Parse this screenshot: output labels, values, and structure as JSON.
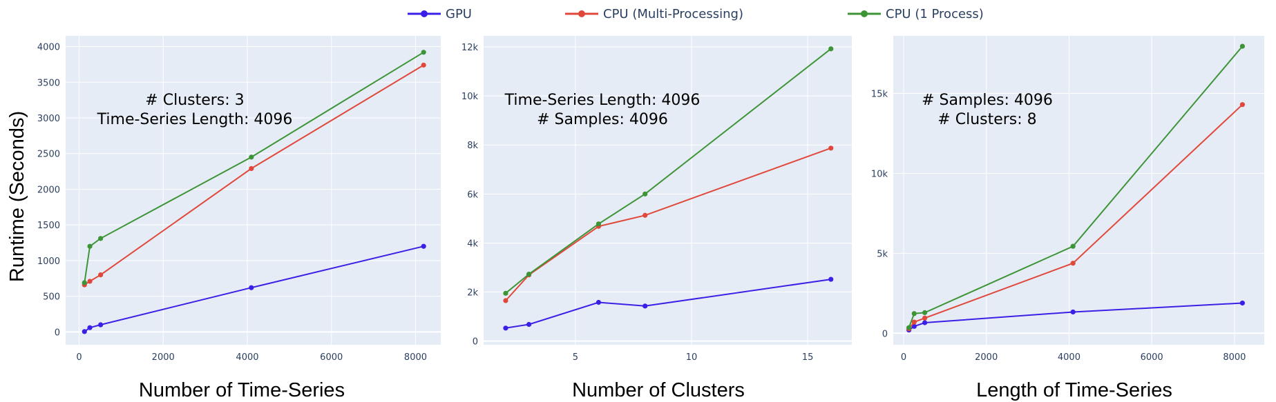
{
  "figure": {
    "ylabel": "Runtime (Seconds)"
  },
  "legend": {
    "items": [
      {
        "name": "GPU",
        "color": "#3a1fe6"
      },
      {
        "name": "CPU (Multi-Processing)",
        "color": "#e0483b"
      },
      {
        "name": "CPU (1 Process)",
        "color": "#3d9436"
      }
    ]
  },
  "chart_data": [
    {
      "type": "line",
      "xlabel": "Number of Time-Series",
      "ylabel": "Runtime (Seconds)",
      "annotation": [
        "# Clusters: 3",
        "Time-Series Length: 4096"
      ],
      "xlim": [
        -320,
        8600
      ],
      "ylim": [
        -180,
        4150
      ],
      "xticks": [
        0,
        2000,
        4000,
        6000,
        8000
      ],
      "xtick_labels": [
        "0",
        "2000",
        "4000",
        "6000",
        "8000"
      ],
      "yticks": [
        0,
        500,
        1000,
        1500,
        2000,
        2500,
        3000,
        3500,
        4000
      ],
      "ytick_labels": [
        "0",
        "500",
        "1000",
        "1500",
        "2000",
        "2500",
        "3000",
        "3500",
        "4000"
      ],
      "x": [
        128,
        256,
        512,
        4096,
        8192
      ],
      "series": [
        {
          "name": "GPU",
          "color": "#3a1fe6",
          "values": [
            5,
            60,
            100,
            620,
            1200
          ]
        },
        {
          "name": "CPU (Multi-Processing)",
          "color": "#e0483b",
          "values": [
            660,
            710,
            800,
            2290,
            3740
          ]
        },
        {
          "name": "CPU (1 Process)",
          "color": "#3d9436",
          "x": [
            128,
            256,
            512,
            4096,
            8192
          ],
          "values": [
            690,
            1200,
            1310,
            2450,
            3920
          ]
        }
      ]
    },
    {
      "type": "line",
      "xlabel": "Number of Clusters",
      "ylabel": "",
      "annotation": [
        "Time-Series Length: 4096",
        "# Samples: 4096"
      ],
      "xlim": [
        1.05,
        16.9
      ],
      "ylim": [
        -150,
        12450
      ],
      "xticks": [
        5,
        10,
        15
      ],
      "xtick_labels": [
        "5",
        "10",
        "15"
      ],
      "yticks": [
        0,
        2000,
        4000,
        6000,
        8000,
        10000,
        12000
      ],
      "ytick_labels": [
        "0",
        "2k",
        "4k",
        "6k",
        "8k",
        "10k",
        "12k"
      ],
      "x": [
        2,
        3,
        6,
        8,
        16
      ],
      "series": [
        {
          "name": "GPU",
          "color": "#3a1fe6",
          "values": [
            530,
            680,
            1580,
            1430,
            2520
          ]
        },
        {
          "name": "CPU (Multi-Processing)",
          "color": "#e0483b",
          "values": [
            1650,
            2700,
            4680,
            5130,
            7870
          ]
        },
        {
          "name": "CPU (1 Process)",
          "color": "#3d9436",
          "values": [
            1950,
            2730,
            4780,
            6000,
            11920
          ]
        }
      ]
    },
    {
      "type": "line",
      "xlabel": "Length of Time-Series",
      "ylabel": "",
      "annotation": [
        "# Samples: 4096",
        "# Clusters: 8"
      ],
      "xlim": [
        -250,
        8720
      ],
      "ylim": [
        -720,
        18600
      ],
      "xticks": [
        0,
        2000,
        4000,
        6000,
        8000
      ],
      "xtick_labels": [
        "0",
        "2000",
        "4000",
        "6000",
        "8000"
      ],
      "yticks": [
        0,
        5000,
        10000,
        15000
      ],
      "ytick_labels": [
        "0",
        "5k",
        "10k",
        "15k"
      ],
      "x": [
        128,
        256,
        512,
        4096,
        8192
      ],
      "series": [
        {
          "name": "GPU",
          "color": "#3a1fe6",
          "values": [
            200,
            430,
            660,
            1330,
            1890
          ]
        },
        {
          "name": "CPU (Multi-Processing)",
          "color": "#e0483b",
          "values": [
            280,
            700,
            950,
            4380,
            14300
          ]
        },
        {
          "name": "CPU (1 Process)",
          "color": "#3d9436",
          "values": [
            350,
            1230,
            1290,
            5440,
            17950
          ]
        }
      ]
    }
  ]
}
